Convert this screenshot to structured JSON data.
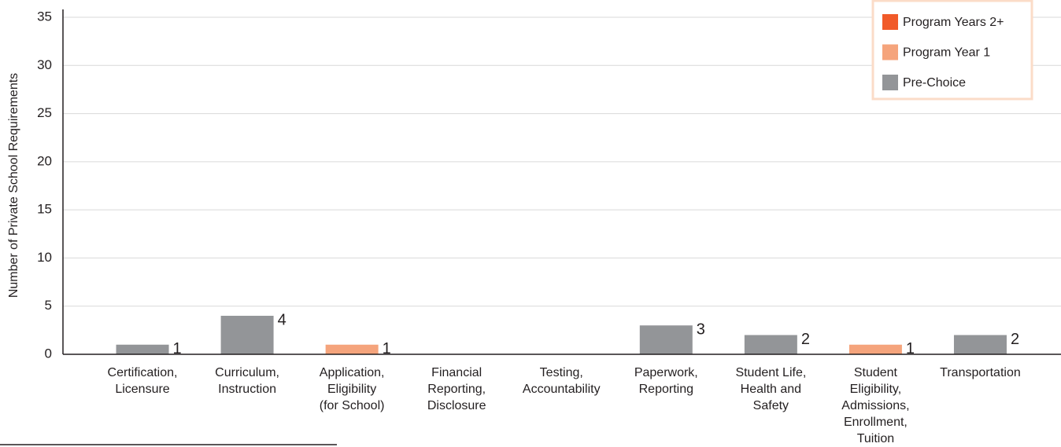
{
  "chart_data": {
    "type": "bar",
    "stacked": true,
    "y_label": "Number of Private School Requirements",
    "categories": [
      "Certification,\nLicensure",
      "Curriculum,\nInstruction",
      "Application,\nEligibility\n(for School)",
      "Financial\nReporting,\nDisclosure",
      "Testing,\nAccountability",
      "Paperwork,\nReporting",
      "Student Life,\nHealth and\nSafety",
      "Student\nEligibility,\nAdmissions,\nEnrollment, Tuition",
      "Transportation"
    ],
    "series": [
      {
        "name": "Pre-Choice",
        "color": "#939598",
        "values": [
          1,
          4,
          0,
          0,
          0,
          3,
          2,
          0,
          2
        ]
      },
      {
        "name": "Program Year 1",
        "color": "#f5a47c",
        "values": [
          0,
          0,
          1,
          0,
          0,
          0,
          0,
          1,
          0
        ]
      },
      {
        "name": "Program Years 2+",
        "color": "#f15a29",
        "values": [
          0,
          0,
          0,
          0,
          0,
          0,
          0,
          0,
          0
        ]
      }
    ],
    "ylim": [
      0,
      35
    ],
    "yticks": [
      0,
      5,
      10,
      15,
      20,
      25,
      30,
      35
    ],
    "grid": true,
    "legend": "upper right"
  }
}
